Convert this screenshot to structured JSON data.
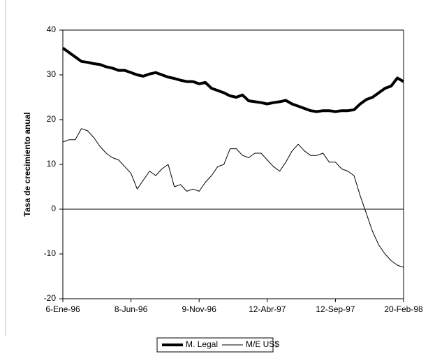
{
  "chart_data": {
    "type": "line",
    "y_label": "Tasa de crecimiento anual",
    "categories": [
      "6-Ene-96",
      null,
      null,
      null,
      null,
      null,
      null,
      null,
      null,
      null,
      null,
      "8-Jun-96",
      null,
      null,
      null,
      null,
      null,
      null,
      null,
      null,
      null,
      null,
      "9-Nov-96",
      null,
      null,
      null,
      null,
      null,
      null,
      null,
      null,
      null,
      null,
      "12-Abr-97",
      null,
      null,
      null,
      null,
      null,
      null,
      null,
      null,
      null,
      null,
      "12-Sep-97",
      null,
      null,
      null,
      null,
      null,
      null,
      null,
      null,
      null,
      null,
      "20-Feb-98"
    ],
    "series": [
      {
        "name": "M. Legal",
        "color": "#000000",
        "width": 4,
        "values": [
          36,
          35,
          34,
          33,
          32.8,
          32.5,
          32.3,
          31.8,
          31.5,
          31,
          31,
          30.5,
          30,
          29.7,
          30.2,
          30.5,
          30,
          29.5,
          29.2,
          28.8,
          28.5,
          28.5,
          28,
          28.3,
          27,
          26.5,
          26,
          25.3,
          25,
          25.5,
          24.2,
          24,
          23.8,
          23.5,
          23.8,
          24,
          24.3,
          23.5,
          23,
          22.5,
          22,
          21.8,
          22,
          22,
          21.8,
          22,
          22,
          22.2,
          23.5,
          24.5,
          25,
          26,
          27,
          27.5,
          29.3,
          28.5
        ]
      },
      {
        "name": "M/E US$",
        "color": "#000000",
        "width": 1,
        "values": [
          15,
          15.5,
          15.5,
          18,
          17.5,
          16,
          14,
          12.5,
          11.5,
          11,
          9.5,
          8,
          4.5,
          6.5,
          8.5,
          7.5,
          9,
          10,
          5,
          5.5,
          4,
          4.5,
          4,
          6,
          7.5,
          9.5,
          10,
          13.5,
          13.5,
          12,
          11.5,
          12.5,
          12.5,
          11,
          9.5,
          8.5,
          10.5,
          13,
          14.5,
          13,
          12,
          12,
          12.5,
          10.5,
          10.5,
          9,
          8.5,
          7.5,
          3,
          -1,
          -5,
          -8,
          -10,
          -11.5,
          -12.5,
          -13
        ]
      }
    ],
    "ylim": [
      -20,
      40
    ],
    "yticks": [
      -20,
      -10,
      0,
      10,
      20,
      30,
      40
    ],
    "zero_line": true,
    "legend": "bottom"
  }
}
